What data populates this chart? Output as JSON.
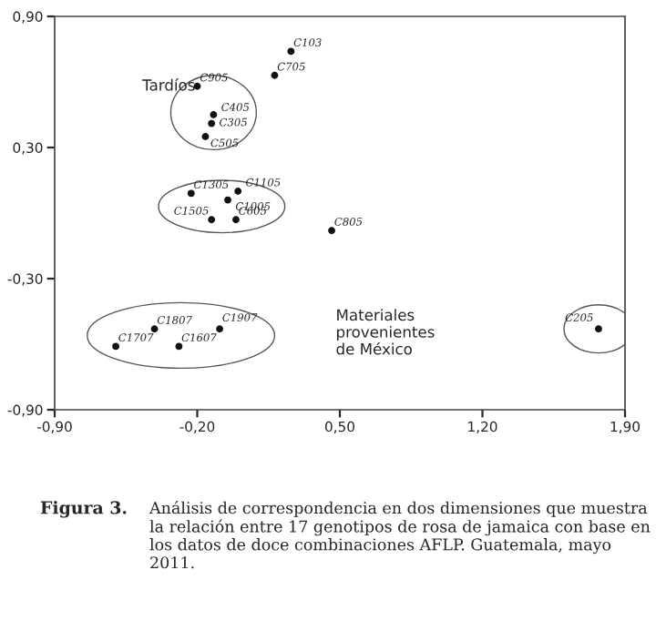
{
  "chart_data": {
    "type": "scatter",
    "color": "#111111",
    "marker": "circle",
    "x": [
      0.26,
      0.18,
      -0.2,
      -0.12,
      -0.13,
      -0.16,
      -0.23,
      0.0,
      -0.05,
      -0.13,
      -0.01,
      0.46,
      -0.41,
      -0.09,
      -0.6,
      -0.29,
      1.77
    ],
    "values": [
      0.74,
      0.63,
      0.58,
      0.45,
      0.41,
      0.35,
      0.09,
      0.1,
      0.06,
      -0.03,
      -0.03,
      -0.08,
      -0.53,
      -0.53,
      -0.61,
      -0.61,
      -0.53
    ],
    "xlim": [
      -0.9,
      1.9
    ],
    "ylim": [
      -0.9,
      0.9
    ],
    "xticks": [
      {
        "value": -0.9,
        "label": "-0,90"
      },
      {
        "value": -0.2,
        "label": "-0,20"
      },
      {
        "value": 0.5,
        "label": "0,50"
      },
      {
        "value": 1.2,
        "label": "1,20"
      },
      {
        "value": 1.9,
        "label": "1,90"
      }
    ],
    "yticks": [
      {
        "value": -0.9,
        "label": "-0,90"
      },
      {
        "value": -0.3,
        "label": "-0,30"
      },
      {
        "value": 0.3,
        "label": "0,30"
      },
      {
        "value": 0.9,
        "label": "0,90"
      }
    ],
    "grid": false,
    "annotations": [
      {
        "text": "C103",
        "x": 0.26,
        "y": 0.74
      },
      {
        "text": "C705",
        "x": 0.18,
        "y": 0.63
      },
      {
        "text": "C905",
        "x": -0.2,
        "y": 0.58
      },
      {
        "text": "C405",
        "x": -0.12,
        "y": 0.45
      },
      {
        "text": "C305",
        "x": -0.13,
        "y": 0.41
      },
      {
        "text": "C505",
        "x": -0.16,
        "y": 0.35
      },
      {
        "text": "C1305",
        "x": -0.23,
        "y": 0.09
      },
      {
        "text": "C1105",
        "x": 0.0,
        "y": 0.1
      },
      {
        "text": "C1005",
        "x": -0.05,
        "y": 0.06
      },
      {
        "text": "C1505",
        "x": -0.13,
        "y": -0.03
      },
      {
        "text": "C605",
        "x": -0.01,
        "y": -0.03
      },
      {
        "text": "C805",
        "x": 0.46,
        "y": -0.08
      },
      {
        "text": "C1807",
        "x": -0.41,
        "y": -0.53
      },
      {
        "text": "C1907",
        "x": -0.09,
        "y": -0.53
      },
      {
        "text": "C1707",
        "x": -0.6,
        "y": -0.61
      },
      {
        "text": "C1607",
        "x": -0.29,
        "y": -0.61
      },
      {
        "text": "C205",
        "x": 1.77,
        "y": -0.53
      },
      "Tardíos",
      "Materiales\nprovenientes\nde México",
      "Figura 3.",
      "Análisis de correspondencia en dos dimensiones que muestra la relación entre 17 genotipos de rosa de jamaica con base en los datos de doce combinaciones AFLP. Guatemala, mayo 2011."
    ]
  }
}
